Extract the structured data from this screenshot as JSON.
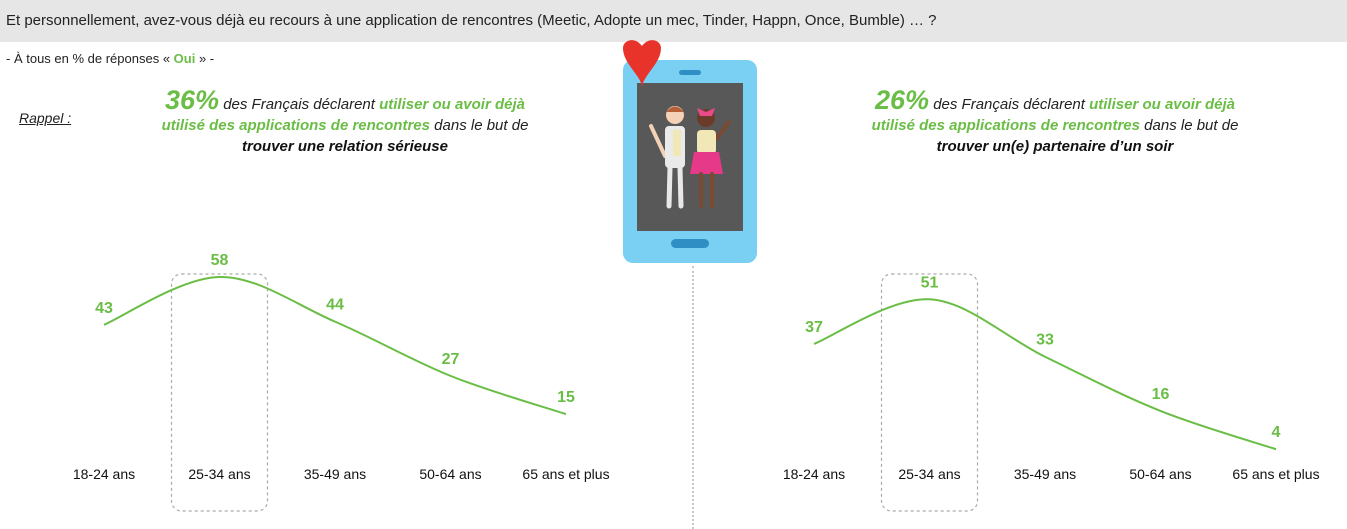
{
  "header": {
    "question": "Et personnellement, avez-vous déjà eu recours à une application de rencontres (Meetic, Adopte un mec, Tinder, Happn, Once, Bumble) … ?"
  },
  "subtitle": {
    "prefix": "- À tous en % de réponses « ",
    "oui": "Oui",
    "suffix": " » -"
  },
  "rappel": "Rappel :",
  "stat_left": {
    "pct": "36%",
    "t1": " des Français déclarent ",
    "g1": "utiliser ou avoir déjà utilisé des applications de rencontres",
    "t2": " dans le but de ",
    "b1": "trouver une relation sérieuse"
  },
  "stat_right": {
    "pct": "26%",
    "t1": " des Français déclarent ",
    "g1": "utiliser ou avoir déjà utilisé des applications de rencontres",
    "t2": " dans le but de ",
    "b1": "trouver un(e) partenaire d’un soir"
  },
  "colors": {
    "accent_green": "#6abd45",
    "header_bg": "#e6e6e6"
  },
  "chart_data": [
    {
      "type": "line",
      "categories": [
        "18-24 ans",
        "25-34 ans",
        "35-49 ans",
        "50-64 ans",
        "65 ans et plus"
      ],
      "values": [
        43,
        58,
        44,
        27,
        15
      ],
      "highlight_category": "25-34 ans"
    },
    {
      "type": "line",
      "categories": [
        "18-24 ans",
        "25-34 ans",
        "35-49 ans",
        "50-64 ans",
        "65 ans et plus"
      ],
      "values": [
        37,
        51,
        33,
        16,
        4
      ],
      "highlight_category": "25-34 ans"
    }
  ]
}
